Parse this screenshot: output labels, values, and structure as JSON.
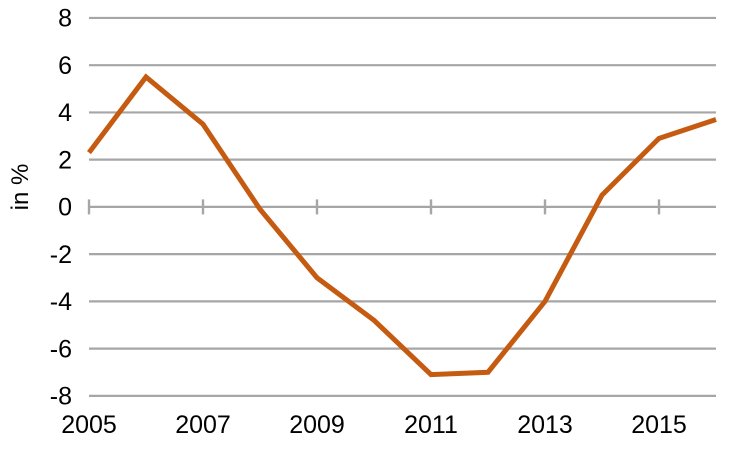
{
  "chart": {
    "ylabel": "in %",
    "accent_color": "#C55A11",
    "gridline_color": "#A6A6A6",
    "text_color": "#000000",
    "background_color": "#FFFFFF"
  },
  "chart_data": {
    "type": "line",
    "title": "",
    "xlabel": "",
    "ylabel": "in %",
    "x": [
      2005,
      2006,
      2007,
      2008,
      2009,
      2010,
      2011,
      2012,
      2013,
      2014,
      2015,
      2016
    ],
    "series": [
      {
        "name": "value-in-percent",
        "color": "#C55A11",
        "values": [
          2.3,
          5.5,
          3.5,
          -0.1,
          -3.0,
          -4.8,
          -7.1,
          -7.0,
          -4.0,
          0.5,
          2.9,
          3.7
        ]
      }
    ],
    "ylim": [
      -8,
      8
    ],
    "yticks": [
      8,
      6,
      4,
      2,
      0,
      -2,
      -4,
      -6,
      -8
    ],
    "xticks": [
      2005,
      2007,
      2009,
      2011,
      2013,
      2015
    ],
    "grid": "horizontal",
    "zero_axis_has_tick_marks": true,
    "legend": "none"
  }
}
